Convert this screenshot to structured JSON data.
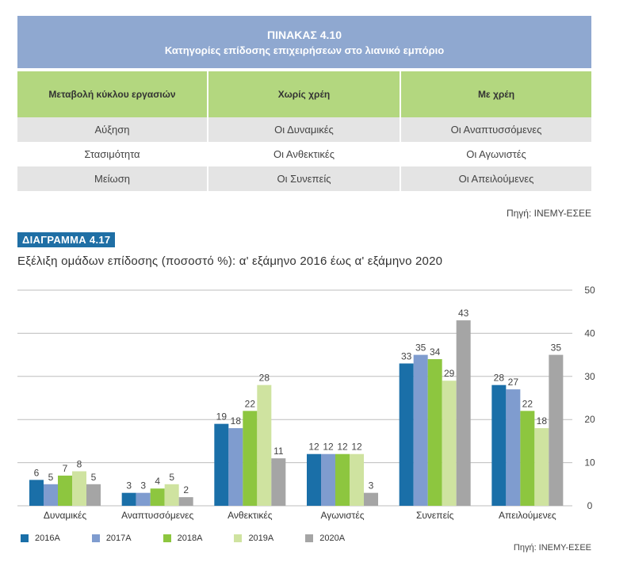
{
  "table": {
    "number": "ΠΙΝΑΚΑΣ 4.10",
    "title": "Κατηγορίες επίδοσης επιχειρήσεων στο λιανικό εμπόριο",
    "columns": [
      "Μεταβολή κύκλου εργασιών",
      "Χωρίς χρέη",
      "Με χρέη"
    ],
    "rows": [
      [
        "Αύξηση",
        "Οι Δυναμικές",
        "Οι Αναπτυσσόμενες"
      ],
      [
        "Στασιμότητα",
        "Οι Ανθεκτικές",
        "Οι Αγωνιστές"
      ],
      [
        "Μείωση",
        "Οι Συνεπείς",
        "Οι Απειλούμενες"
      ]
    ],
    "source": "Πηγή: ΙΝΕΜΥ-ΕΣΕΕ"
  },
  "diagram": {
    "number": "ΔΙΑΓΡΑΜΜΑ 4.17",
    "title": "Εξέλιξη ομάδων επίδοσης (ποσοστό %): α' εξάμηνο 2016 έως α' εξάμηνο 2020",
    "source": "Πηγή: ΙΝΕΜΥ-ΕΣΕΕ"
  },
  "colors": {
    "header_blue": "#8fa8d0",
    "header_green": "#b3d77f",
    "series": [
      "#1a6fa8",
      "#7f9ccf",
      "#8dc63f",
      "#cfe3a0",
      "#a5a5a5"
    ]
  },
  "chart_data": {
    "type": "bar",
    "categories": [
      "Δυναμικές",
      "Αναπτυσσόμενες",
      "Ανθεκτικές",
      "Αγωνιστές",
      "Συνεπείς",
      "Απειλούμενες"
    ],
    "series": [
      {
        "name": "2016Α",
        "values": [
          6,
          3,
          19,
          12,
          33,
          28
        ]
      },
      {
        "name": "2017Α",
        "values": [
          5,
          3,
          18,
          12,
          35,
          27
        ]
      },
      {
        "name": "2018Α",
        "values": [
          7,
          4,
          22,
          12,
          34,
          22
        ]
      },
      {
        "name": "2019Α",
        "values": [
          8,
          5,
          28,
          12,
          29,
          18
        ]
      },
      {
        "name": "2020Α",
        "values": [
          5,
          2,
          11,
          3,
          43,
          35
        ]
      }
    ],
    "ylim": [
      0,
      50
    ],
    "yticks": [
      0,
      10,
      20,
      30,
      40,
      50
    ],
    "y_axis_side": "right",
    "grid": true,
    "legend": "bottom-left",
    "data_labels": true
  }
}
